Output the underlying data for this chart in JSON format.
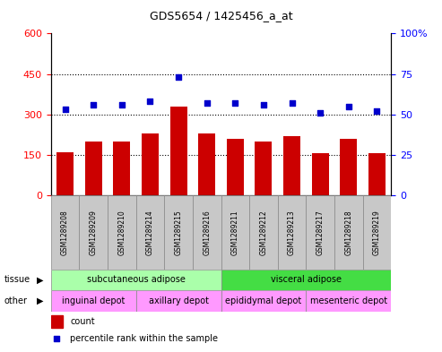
{
  "title": "GDS5654 / 1425456_a_at",
  "samples": [
    "GSM1289208",
    "GSM1289209",
    "GSM1289210",
    "GSM1289214",
    "GSM1289215",
    "GSM1289216",
    "GSM1289211",
    "GSM1289212",
    "GSM1289213",
    "GSM1289217",
    "GSM1289218",
    "GSM1289219"
  ],
  "counts": [
    160,
    200,
    200,
    230,
    330,
    230,
    210,
    200,
    220,
    155,
    210,
    155
  ],
  "percentiles": [
    53,
    56,
    56,
    58,
    73,
    57,
    57,
    56,
    57,
    51,
    55,
    52
  ],
  "ylim_left": [
    0,
    600
  ],
  "ylim_right": [
    0,
    100
  ],
  "yticks_left": [
    0,
    150,
    300,
    450,
    600
  ],
  "yticks_right": [
    0,
    25,
    50,
    75,
    100
  ],
  "bar_color": "#CC0000",
  "dot_color": "#0000CC",
  "xtick_bg_color": "#C8C8C8",
  "tissue_groups": [
    {
      "label": "subcutaneous adipose",
      "start": 0,
      "end": 6,
      "color": "#AAFFAA"
    },
    {
      "label": "visceral adipose",
      "start": 6,
      "end": 12,
      "color": "#44DD44"
    }
  ],
  "other_groups": [
    {
      "label": "inguinal depot",
      "start": 0,
      "end": 3,
      "color": "#FF99FF"
    },
    {
      "label": "axillary depot",
      "start": 3,
      "end": 6,
      "color": "#FF99FF"
    },
    {
      "label": "epididymal depot",
      "start": 6,
      "end": 9,
      "color": "#FF99FF"
    },
    {
      "label": "mesenteric depot",
      "start": 9,
      "end": 12,
      "color": "#FF99FF"
    }
  ],
  "legend_count_label": "count",
  "legend_pct_label": "percentile rank within the sample",
  "tissue_label": "tissue",
  "other_label": "other",
  "fig_width": 4.93,
  "fig_height": 3.93,
  "dpi": 100
}
